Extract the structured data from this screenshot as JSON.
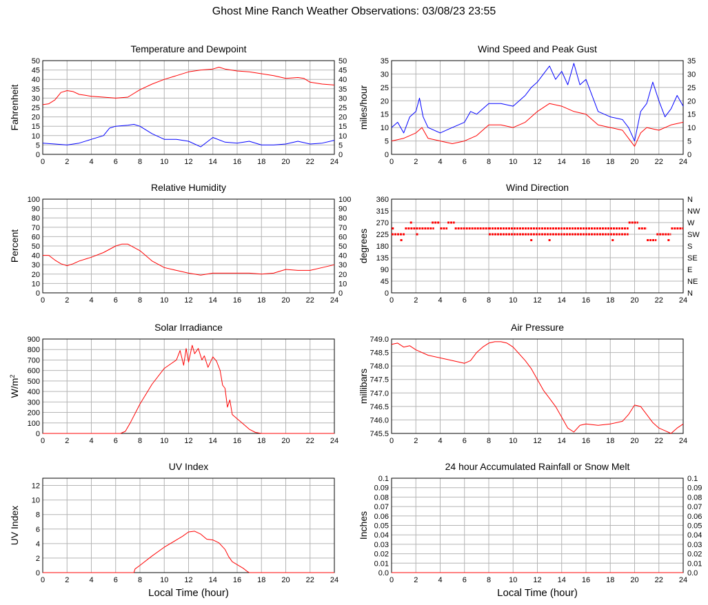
{
  "page": {
    "title": "Ghost Mine Ranch Weather Observations: 03/08/23 23:55"
  },
  "colors": {
    "red": "#ff0000",
    "blue": "#0000ff",
    "grid": "#b4b4b4"
  },
  "chart_data": [
    {
      "id": "temp",
      "type": "line",
      "title": "Temperature and Dewpoint",
      "ylabel": "Fahrenheit",
      "xlabel": "",
      "xlim": [
        0,
        24
      ],
      "ylim": [
        0,
        50
      ],
      "yticks": [
        "0",
        "5",
        "10",
        "15",
        "20",
        "25",
        "30",
        "35",
        "40",
        "45",
        "50"
      ],
      "right_ticks": [
        "0",
        "5",
        "10",
        "15",
        "20",
        "25",
        "30",
        "35",
        "40",
        "45",
        "50"
      ],
      "xticks": [
        "0",
        "2",
        "4",
        "6",
        "8",
        "10",
        "12",
        "14",
        "16",
        "18",
        "20",
        "22",
        "24"
      ],
      "grid": true,
      "series": [
        {
          "color": "red",
          "x": [
            0,
            0.5,
            1,
            1.5,
            2,
            2.5,
            3,
            3.5,
            4,
            5,
            6,
            7,
            8,
            9,
            10,
            11,
            12,
            13,
            14,
            14.5,
            15,
            16,
            17,
            18,
            19,
            20,
            21,
            21.5,
            22,
            23,
            24
          ],
          "y": [
            26.5,
            27,
            29,
            33,
            34,
            33.5,
            32,
            31.5,
            31,
            30.5,
            30,
            30.5,
            34.5,
            37.5,
            40,
            42,
            44,
            45,
            45.5,
            46.5,
            45.5,
            44.5,
            44,
            43,
            42,
            40.5,
            41,
            40.5,
            38.5,
            37.5,
            37
          ]
        },
        {
          "color": "blue",
          "x": [
            0,
            1,
            2,
            3,
            4,
            5,
            5.5,
            6,
            7,
            7.5,
            8,
            9,
            10,
            11,
            12,
            13,
            14,
            15,
            16,
            17,
            18,
            19,
            20,
            21,
            22,
            23,
            24
          ],
          "y": [
            6,
            5.5,
            5,
            6,
            8,
            10,
            14,
            15,
            15.5,
            16,
            15,
            11,
            8,
            8,
            7,
            4,
            9,
            6.5,
            6,
            7,
            5,
            5,
            5.5,
            7,
            5.5,
            6,
            7.5
          ]
        }
      ]
    },
    {
      "id": "wind",
      "type": "line",
      "title": "Wind Speed and Peak Gust",
      "ylabel": "miles/hour",
      "xlabel": "",
      "xlim": [
        0,
        24
      ],
      "ylim": [
        0,
        35
      ],
      "yticks": [
        "0",
        "5",
        "10",
        "15",
        "20",
        "25",
        "30",
        "35"
      ],
      "right_ticks": [
        "0",
        "5",
        "10",
        "15",
        "20",
        "25",
        "30",
        "35"
      ],
      "xticks": [
        "0",
        "2",
        "4",
        "6",
        "8",
        "10",
        "12",
        "14",
        "16",
        "18",
        "20",
        "22",
        "24"
      ],
      "grid": true,
      "series": [
        {
          "color": "red",
          "x": [
            0,
            1,
            2,
            2.5,
            3,
            4,
            5,
            6,
            7,
            8,
            9,
            10,
            11,
            12,
            13,
            14,
            15,
            16,
            17,
            18,
            19,
            19.5,
            20,
            20.5,
            21,
            22,
            23,
            24
          ],
          "y": [
            5,
            6,
            8,
            10,
            6,
            5,
            4,
            5,
            7,
            11,
            11,
            10,
            12,
            16,
            19,
            18,
            16,
            15,
            11,
            10,
            9,
            6,
            3,
            8,
            10,
            9,
            11,
            12
          ]
        },
        {
          "color": "blue",
          "x": [
            0,
            0.5,
            1,
            1.5,
            2,
            2.3,
            2.6,
            3,
            4,
            5,
            6,
            6.5,
            7,
            8,
            9,
            10,
            11,
            11.5,
            12,
            12.5,
            13,
            13.5,
            14,
            14.5,
            15,
            15.5,
            16,
            17,
            18,
            19,
            19.5,
            20,
            20.5,
            21,
            21.5,
            22,
            22.5,
            23,
            23.5,
            24
          ],
          "y": [
            10,
            12,
            8,
            14,
            16,
            21,
            14,
            10,
            8,
            10,
            12,
            16,
            15,
            19,
            19,
            18,
            22,
            25,
            27,
            30,
            33,
            28,
            31,
            26,
            34,
            26,
            28,
            16,
            14,
            13,
            10,
            5,
            16,
            19,
            27,
            20,
            14,
            17,
            22,
            18
          ]
        }
      ]
    },
    {
      "id": "rh",
      "type": "line",
      "title": "Relative Humidity",
      "ylabel": "Percent",
      "xlabel": "",
      "xlim": [
        0,
        24
      ],
      "ylim": [
        0,
        100
      ],
      "yticks": [
        "0",
        "10",
        "20",
        "30",
        "40",
        "50",
        "60",
        "70",
        "80",
        "90",
        "100"
      ],
      "right_ticks": [
        "0",
        "10",
        "20",
        "30",
        "40",
        "50",
        "60",
        "70",
        "80",
        "90",
        "100"
      ],
      "xticks": [
        "0",
        "2",
        "4",
        "6",
        "8",
        "10",
        "12",
        "14",
        "16",
        "18",
        "20",
        "22",
        "24"
      ],
      "grid": true,
      "series": [
        {
          "color": "red",
          "x": [
            0,
            0.5,
            1,
            1.5,
            2,
            2.5,
            3,
            4,
            5,
            6,
            6.5,
            7,
            8,
            9,
            10,
            11,
            12,
            13,
            14,
            15,
            16,
            17,
            18,
            19,
            20,
            21,
            22,
            23,
            24
          ],
          "y": [
            40,
            40,
            35,
            31,
            29,
            31,
            34,
            38,
            43,
            50,
            52,
            52,
            45,
            34,
            27,
            24,
            21,
            19,
            21,
            21,
            21,
            21,
            20,
            21,
            25,
            24,
            24,
            27,
            30
          ]
        }
      ]
    },
    {
      "id": "wdir",
      "type": "scatter",
      "title": "Wind Direction",
      "ylabel": "degrees",
      "xlabel": "",
      "xlim": [
        0,
        24
      ],
      "ylim": [
        0,
        360
      ],
      "yticks": [
        "0",
        "45",
        "90",
        "135",
        "180",
        "225",
        "270",
        "315",
        "360"
      ],
      "right_ticks": [
        "N",
        "NE",
        "E",
        "SE",
        "S",
        "SW",
        "W",
        "NW",
        "N"
      ],
      "xticks": [
        "0",
        "2",
        "4",
        "6",
        "8",
        "10",
        "12",
        "14",
        "16",
        "18",
        "20",
        "22",
        "24"
      ],
      "grid": true,
      "segments": [
        {
          "x0": 0,
          "x1": 1.1,
          "y": 225
        },
        {
          "x0": 1.1,
          "x1": 3.5,
          "y": 247.5
        },
        {
          "x0": 3.3,
          "x1": 4.0,
          "y": 270
        },
        {
          "x0": 4.0,
          "x1": 4.6,
          "y": 247.5
        },
        {
          "x0": 4.6,
          "x1": 5.2,
          "y": 270
        },
        {
          "x0": 5.2,
          "x1": 8.0,
          "y": 247.5
        },
        {
          "x0": 8.0,
          "x1": 19.5,
          "y": 225
        },
        {
          "x0": 8.0,
          "x1": 19.5,
          "y": 247.5
        },
        {
          "x0": 19.5,
          "x1": 20.3,
          "y": 270
        },
        {
          "x0": 20.3,
          "x1": 21.0,
          "y": 247.5
        },
        {
          "x0": 21.0,
          "x1": 21.8,
          "y": 202.5
        },
        {
          "x0": 21.8,
          "x1": 23.0,
          "y": 225
        },
        {
          "x0": 23.0,
          "x1": 24.0,
          "y": 247.5
        }
      ],
      "points": [
        {
          "x": 0.1,
          "y": 247.5
        },
        {
          "x": 0.8,
          "y": 202.5
        },
        {
          "x": 1.6,
          "y": 270
        },
        {
          "x": 2.1,
          "y": 225
        },
        {
          "x": 11.5,
          "y": 202.5
        },
        {
          "x": 13.0,
          "y": 202.5
        },
        {
          "x": 18.2,
          "y": 202.5
        },
        {
          "x": 22.8,
          "y": 202.5
        }
      ]
    },
    {
      "id": "solar",
      "type": "line",
      "title": "Solar Irradiance",
      "ylabel": "W/m",
      "ylabel_sup": "2",
      "xlabel": "",
      "xlim": [
        0,
        24
      ],
      "ylim": [
        0,
        900
      ],
      "yticks": [
        "0",
        "100",
        "200",
        "300",
        "400",
        "500",
        "600",
        "700",
        "800",
        "900"
      ],
      "right_ticks": [],
      "xticks": [
        "0",
        "2",
        "4",
        "6",
        "8",
        "10",
        "12",
        "14",
        "16",
        "18",
        "20",
        "22",
        "24"
      ],
      "grid": true,
      "series": [
        {
          "color": "red",
          "x": [
            0,
            6.4,
            6.8,
            7.2,
            8,
            9,
            10,
            10.5,
            11,
            11.3,
            11.6,
            11.8,
            12,
            12.3,
            12.5,
            12.8,
            13.1,
            13.3,
            13.6,
            14,
            14.3,
            14.6,
            14.8,
            15,
            15.2,
            15.4,
            15.6,
            16,
            16.5,
            17,
            17.5,
            18,
            24
          ],
          "y": [
            0,
            0,
            20,
            100,
            280,
            470,
            620,
            660,
            700,
            790,
            650,
            810,
            680,
            840,
            760,
            810,
            700,
            740,
            630,
            730,
            690,
            600,
            460,
            430,
            250,
            320,
            180,
            140,
            90,
            40,
            10,
            0,
            0
          ]
        }
      ]
    },
    {
      "id": "pressure",
      "type": "line",
      "title": "Air Pressure",
      "ylabel": "millibars",
      "xlabel": "",
      "xlim": [
        0,
        24
      ],
      "ylim": [
        745.5,
        749.0
      ],
      "yticks": [
        "745.5",
        "746.0",
        "746.5",
        "747.0",
        "747.5",
        "748.0",
        "748.5",
        "749.0"
      ],
      "right_ticks": [],
      "xticks": [
        "0",
        "2",
        "4",
        "6",
        "8",
        "10",
        "12",
        "14",
        "16",
        "18",
        "20",
        "22",
        "24"
      ],
      "grid": true,
      "series": [
        {
          "color": "red",
          "x": [
            0,
            0.5,
            1,
            1.5,
            2,
            3,
            4,
            5,
            6,
            6.5,
            7,
            7.5,
            8,
            8.5,
            9,
            9.5,
            10,
            11,
            11.5,
            12,
            12.5,
            13,
            13.5,
            14,
            14.5,
            15,
            15.5,
            16,
            17,
            18,
            19,
            19.5,
            20,
            20.5,
            21,
            21.5,
            22,
            22.5,
            23,
            23.5,
            24
          ],
          "y": [
            748.8,
            748.85,
            748.7,
            748.75,
            748.6,
            748.4,
            748.3,
            748.2,
            748.1,
            748.2,
            748.5,
            748.7,
            748.85,
            748.9,
            748.9,
            748.85,
            748.7,
            748.2,
            747.9,
            747.5,
            747.1,
            746.8,
            746.5,
            746.1,
            745.7,
            745.55,
            745.8,
            745.85,
            745.8,
            745.85,
            745.95,
            746.2,
            746.55,
            746.5,
            746.2,
            745.9,
            745.7,
            745.6,
            745.5,
            745.7,
            745.85
          ]
        }
      ]
    },
    {
      "id": "uv",
      "type": "line",
      "title": "UV Index",
      "ylabel": "UV Index",
      "xlabel": "Local Time (hour)",
      "xlim": [
        0,
        24
      ],
      "ylim": [
        0,
        13
      ],
      "yticks": [
        "0",
        "2",
        "4",
        "6",
        "8",
        "10",
        "12"
      ],
      "ytick_values": [
        0,
        2,
        4,
        6,
        8,
        10,
        12
      ],
      "right_ticks": [],
      "xticks": [
        "0",
        "2",
        "4",
        "6",
        "8",
        "10",
        "12",
        "14",
        "16",
        "18",
        "20",
        "22",
        "24"
      ],
      "grid": true,
      "series": [
        {
          "color": "red",
          "x": [
            0,
            7.5,
            7.6,
            8,
            9,
            10,
            11,
            11.5,
            12,
            12.5,
            13,
            13.5,
            14,
            14.5,
            15,
            15.3,
            15.6,
            16,
            16.5,
            16.8,
            17,
            24
          ],
          "y": [
            0,
            0,
            0.5,
            1,
            2.3,
            3.5,
            4.5,
            5,
            5.6,
            5.7,
            5.3,
            4.6,
            4.5,
            4.1,
            3.2,
            2.2,
            1.5,
            1.1,
            0.6,
            0.2,
            0,
            0
          ]
        }
      ]
    },
    {
      "id": "rain",
      "type": "line",
      "title": "24 hour Accumulated Rainfall or Snow Melt",
      "ylabel": "Inches",
      "xlabel": "Local Time (hour)",
      "xlim": [
        0,
        24
      ],
      "ylim": [
        0,
        0.1
      ],
      "yticks": [
        "0.0",
        "0.01",
        "0.02",
        "0.03",
        "0.04",
        "0.05",
        "0.06",
        "0.07",
        "0.08",
        "0.09",
        "0.1"
      ],
      "right_ticks": [
        "0.0",
        "0.01",
        "0.02",
        "0.03",
        "0.04",
        "0.05",
        "0.06",
        "0.07",
        "0.08",
        "0.09",
        "0.1"
      ],
      "xticks": [
        "0",
        "2",
        "4",
        "6",
        "8",
        "10",
        "12",
        "14",
        "16",
        "18",
        "20",
        "22",
        "24"
      ],
      "grid": true,
      "series": [
        {
          "color": "red",
          "x": [
            0,
            24
          ],
          "y": [
            0,
            0
          ]
        }
      ]
    }
  ]
}
